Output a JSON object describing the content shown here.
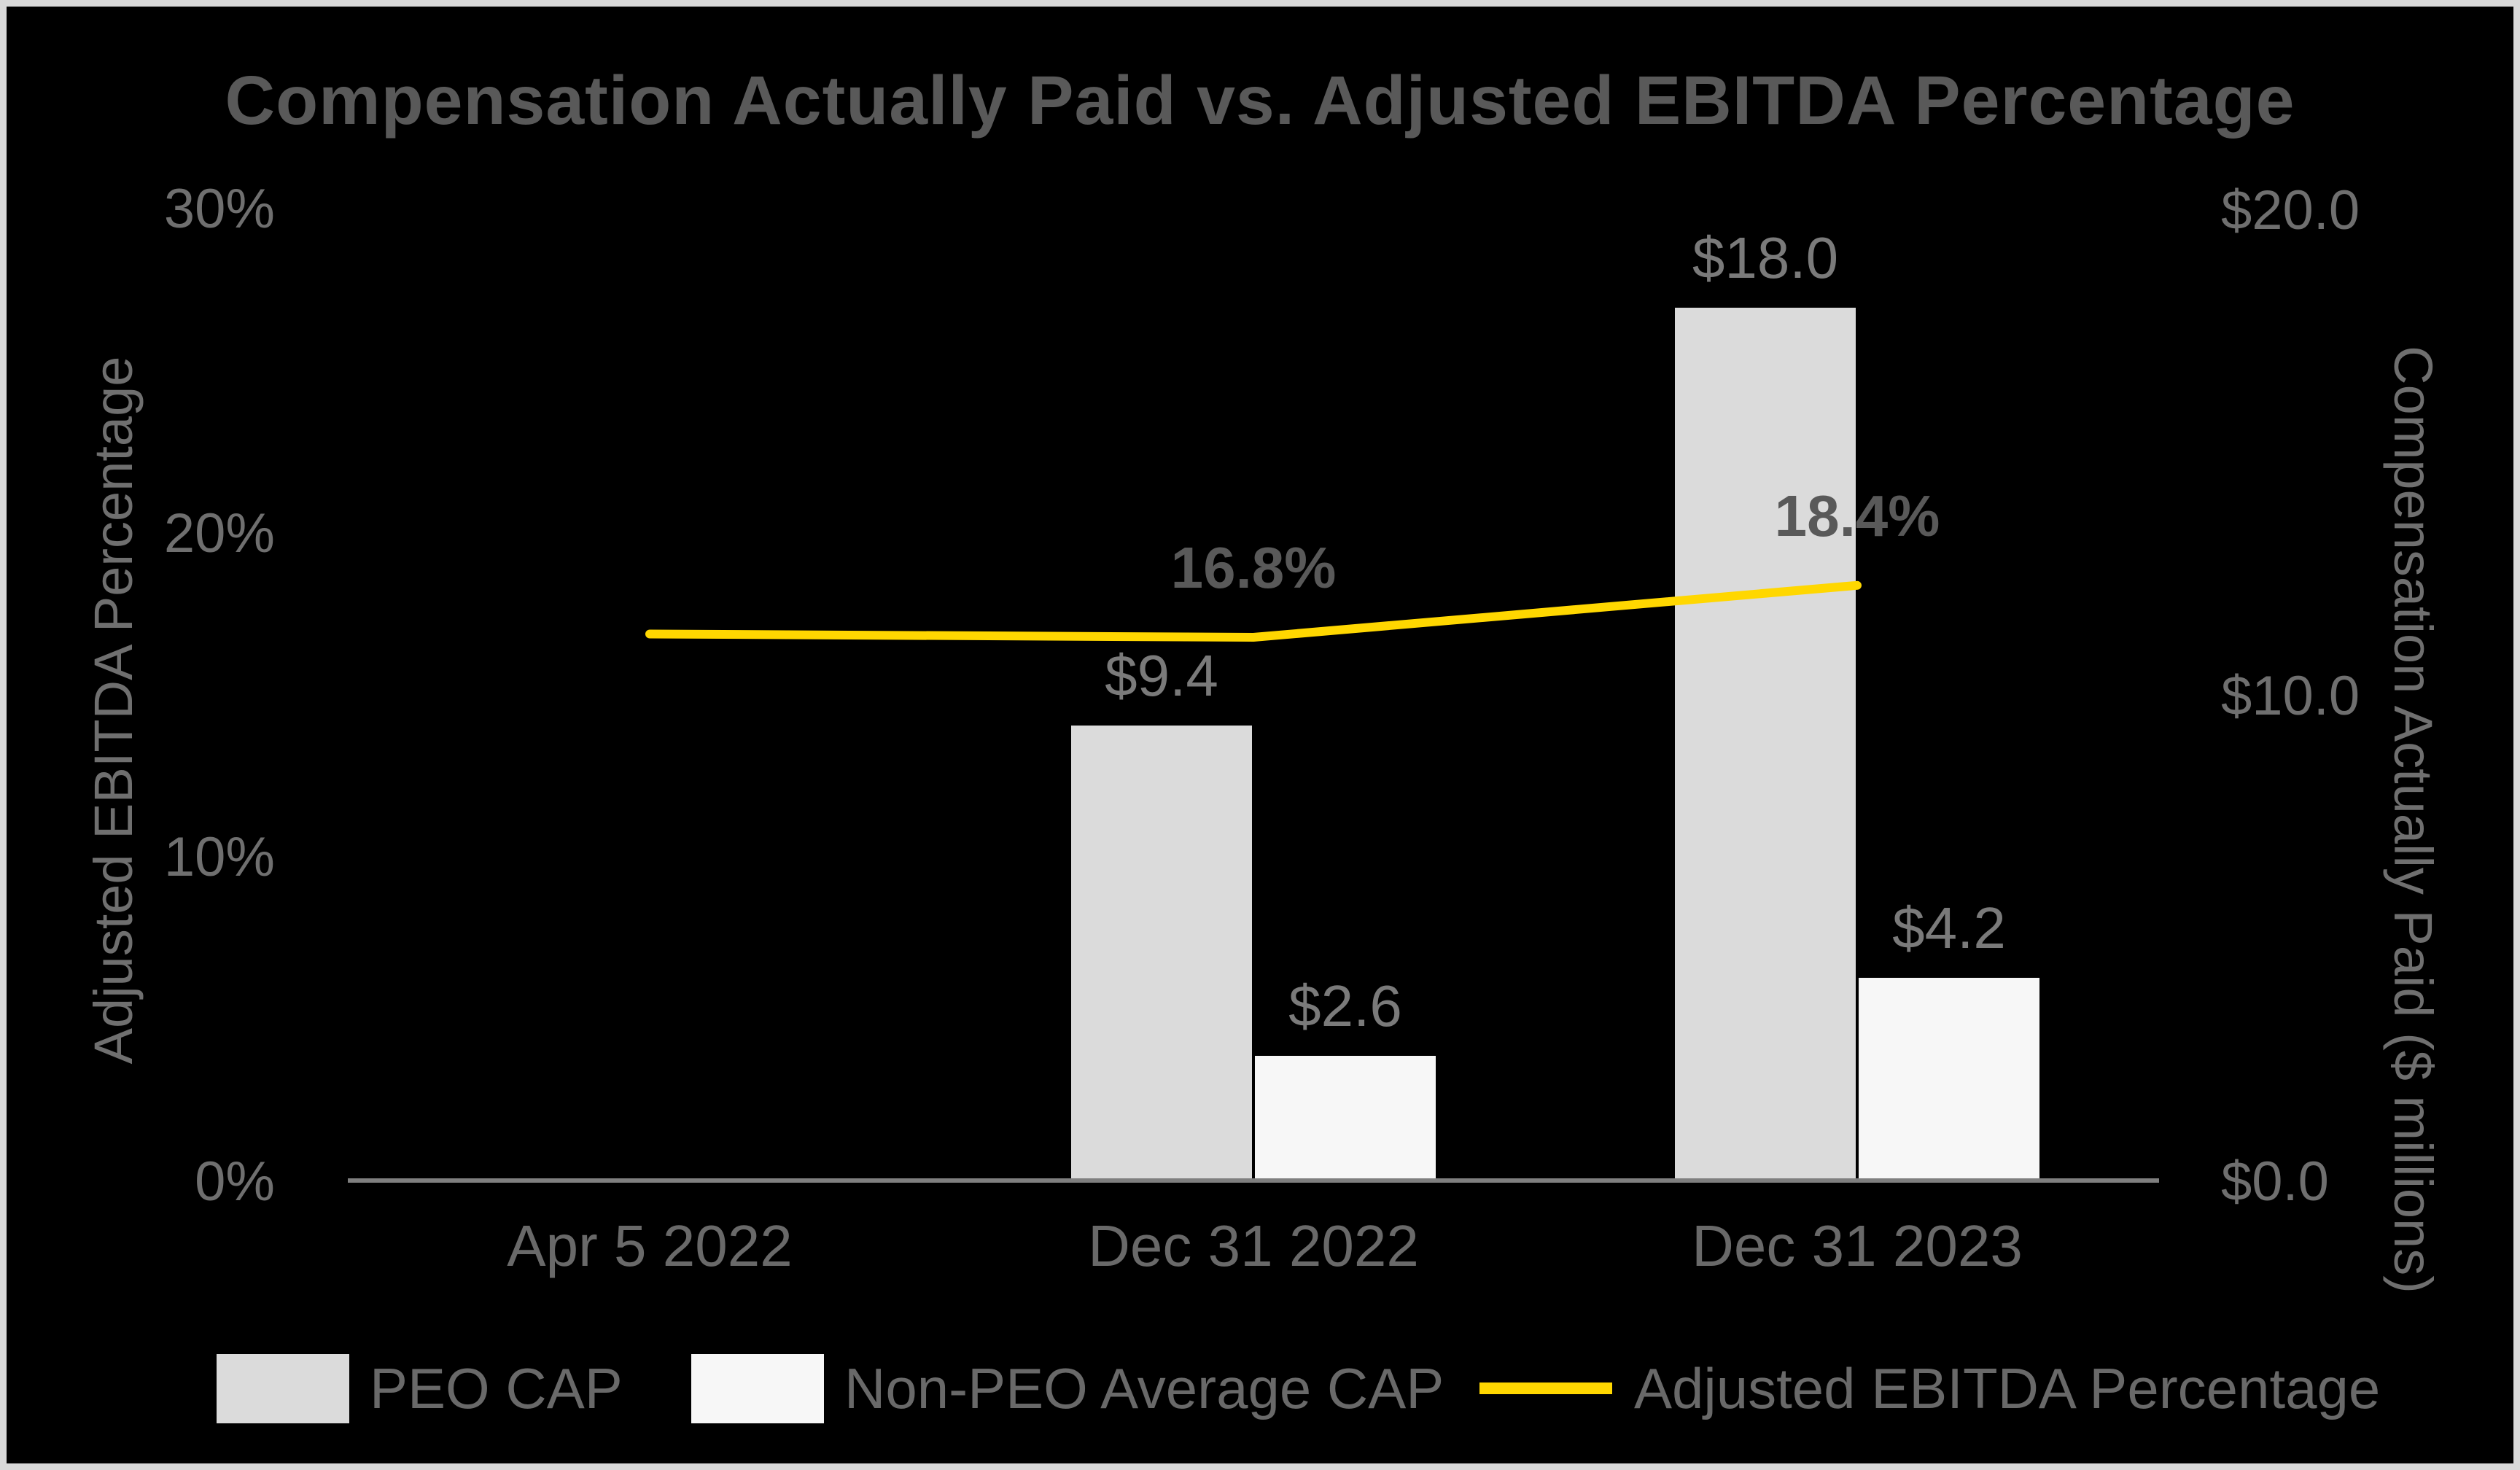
{
  "title": "Compensation Actually Paid vs. Adjusted EBITDA Percentage",
  "colors": {
    "background": "#000000",
    "frame_border": "#D9D9D9",
    "peo_bar": "#DBDBDB",
    "non_peo_bar": "#F7F7F7",
    "line": "#FFD700",
    "axis_line": "#7F7F7F",
    "title_text": "#595959",
    "label_text": "#7A7A7A"
  },
  "chart_data": {
    "type": "bar",
    "subtype": "grouped-bars-with-line-overlay",
    "title": "Compensation Actually Paid vs. Adjusted EBITDA Percentage",
    "categories": [
      "Apr 5 2022",
      "Dec 31 2022",
      "Dec 31 2023"
    ],
    "series": [
      {
        "name": "PEO CAP",
        "kind": "bar",
        "axis": "right",
        "color": "#DBDBDB",
        "values": [
          null,
          9.4,
          18.0
        ],
        "data_labels": [
          "",
          "$9.4",
          "$18.0"
        ]
      },
      {
        "name": "Non-PEO Average CAP",
        "kind": "bar",
        "axis": "right",
        "color": "#F7F7F7",
        "values": [
          null,
          2.6,
          4.2
        ],
        "data_labels": [
          "",
          "$2.6",
          "$4.2"
        ]
      },
      {
        "name": "Adjusted EBITDA Percentage",
        "kind": "line",
        "axis": "left",
        "color": "#FFD700",
        "values": [
          16.9,
          16.8,
          18.4
        ],
        "data_labels": [
          "",
          "16.8%",
          "18.4%"
        ]
      }
    ],
    "left_axis": {
      "title": "Adjusted EBITDA Percentage",
      "min": 0,
      "max": 30,
      "ticks": [
        {
          "value": 0,
          "label": "0%"
        },
        {
          "value": 10,
          "label": "10%"
        },
        {
          "value": 20,
          "label": "20%"
        },
        {
          "value": 30,
          "label": "30%"
        }
      ]
    },
    "right_axis": {
      "title": "Compensation Actually Paid ($ millions)",
      "min": 0,
      "max": 20,
      "ticks": [
        {
          "value": 0,
          "label": "$0.0"
        },
        {
          "value": 10,
          "label": "$10.0"
        },
        {
          "value": 20,
          "label": "$20.0"
        }
      ]
    },
    "grid": false,
    "legend_position": "bottom"
  },
  "legend": {
    "items": [
      {
        "label": "PEO CAP",
        "swatch": "bar",
        "color": "#DBDBDB"
      },
      {
        "label": "Non-PEO Average CAP",
        "swatch": "bar",
        "color": "#F7F7F7"
      },
      {
        "label": "Adjusted EBITDA Percentage",
        "swatch": "line",
        "color": "#FFD700"
      }
    ]
  }
}
